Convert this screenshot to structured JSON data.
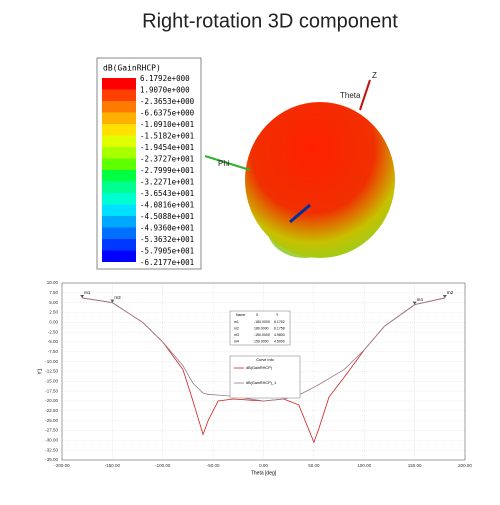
{
  "header": {
    "title": "Right-rotation 3D component"
  },
  "colorbar": {
    "title": "dB(GainRHCP)",
    "labels": [
      "6.1792e+000",
      "1.9070e+000",
      "-2.3653e+000",
      "-6.6375e+000",
      "-1.0910e+001",
      "-1.5182e+001",
      "-1.9454e+001",
      "-2.3727e+001",
      "-2.7999e+001",
      "-3.2271e+001",
      "-3.6543e+001",
      "-4.0816e+001",
      "-4.5088e+001",
      "-4.9360e+001",
      "-5.3632e+001",
      "-5.7905e+001",
      "-6.2177e+001"
    ],
    "colors": [
      "#ff0000",
      "#ff4000",
      "#ff7a00",
      "#ffb000",
      "#ffe000",
      "#e0ff00",
      "#a8ff00",
      "#60ff00",
      "#00ff40",
      "#00ff90",
      "#00ffd0",
      "#00e0ff",
      "#00a8ff",
      "#0070ff",
      "#0038ff",
      "#0000ff"
    ]
  },
  "pattern": {
    "axes": [
      "Z",
      "Theta",
      "Phi"
    ]
  },
  "chart_data": {
    "type": "line",
    "xlabel": "Theta [deg]",
    "ylabel": "Y1",
    "x": [
      -180,
      -150,
      -120,
      -100,
      -80,
      -70,
      -60,
      -55,
      -45,
      -30,
      0,
      20,
      35,
      50,
      55,
      65,
      80,
      100,
      120,
      150,
      180
    ],
    "series": [
      {
        "name": "dB(GainRHCP)",
        "color": "#d02020",
        "values": [
          6.2,
          5,
          0,
          -5,
          -12,
          -20,
          -28.5,
          -25,
          -20,
          -19.5,
          -20,
          -19.5,
          -21,
          -30.5,
          -27,
          -19,
          -14,
          -7,
          -1,
          4.5,
          6.2
        ]
      },
      {
        "name": "dB(GainRHCP)_1",
        "color": "#9a7a8a",
        "values": [
          6.2,
          5,
          0,
          -5,
          -11,
          -15.5,
          -18,
          -18.3,
          -18.5,
          -18.8,
          -20,
          -19.5,
          -18.5,
          -16.5,
          -15.8,
          -14.3,
          -12,
          -7,
          -1,
          4.5,
          6.2
        ]
      }
    ],
    "legend_title": "Curve Info",
    "xlim": [
      -200,
      200
    ],
    "ylim": [
      -35,
      10
    ],
    "xticks": [
      {
        "value": -200,
        "label": "-200.00"
      },
      {
        "value": -150,
        "label": "-150.00"
      },
      {
        "value": -100,
        "label": "-100.00"
      },
      {
        "value": -50,
        "label": "-50.00"
      },
      {
        "value": 0,
        "label": "0.00"
      },
      {
        "value": 50,
        "label": "50.00"
      },
      {
        "value": 100,
        "label": "100.00"
      },
      {
        "value": 150,
        "label": "150.00"
      },
      {
        "value": 200,
        "label": "200.00"
      }
    ],
    "yticks": [
      {
        "value": 10,
        "label": "10.00"
      },
      {
        "value": 7.5,
        "label": "7.50"
      },
      {
        "value": 5,
        "label": "5.00"
      },
      {
        "value": 2.5,
        "label": "2.50"
      },
      {
        "value": 0,
        "label": "0.00"
      },
      {
        "value": -2.5,
        "label": "-2.50"
      },
      {
        "value": -5,
        "label": "-5.00"
      },
      {
        "value": -7.5,
        "label": "-7.50"
      },
      {
        "value": -10,
        "label": "-10.00"
      },
      {
        "value": -12.5,
        "label": "-12.50"
      },
      {
        "value": -15,
        "label": "-15.00"
      },
      {
        "value": -17.5,
        "label": "-17.50"
      },
      {
        "value": -20,
        "label": "-20.00"
      },
      {
        "value": -22.5,
        "label": "-22.50"
      },
      {
        "value": -25,
        "label": "-25.00"
      },
      {
        "value": -27.5,
        "label": "-27.50"
      },
      {
        "value": -30,
        "label": "-30.00"
      },
      {
        "value": -32.5,
        "label": "-32.50"
      },
      {
        "value": -35,
        "label": "-35.00"
      }
    ],
    "grid": true,
    "markers": [
      {
        "name": "m1",
        "x": -180,
        "y": 6.18
      },
      {
        "name": "m3",
        "x": -150,
        "y": 5
      },
      {
        "name": "m4",
        "x": 150,
        "y": 4.5
      },
      {
        "name": "m2",
        "x": 180,
        "y": 6.18
      }
    ],
    "marker_table": {
      "header": [
        "Name",
        "X",
        "Y"
      ],
      "rows": [
        [
          "m1",
          "-180.0000",
          "6.1792"
        ],
        [
          "m2",
          "180.0000",
          "6.1758"
        ],
        [
          "m3",
          "-150.0000",
          "4.9800"
        ],
        [
          "m4",
          "150.0000",
          "4.5000"
        ]
      ]
    }
  }
}
